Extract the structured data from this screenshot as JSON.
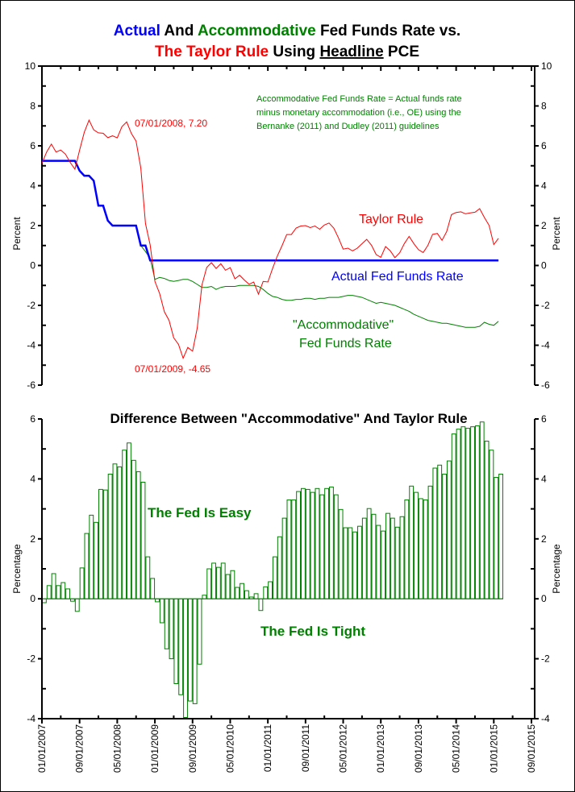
{
  "title": {
    "line1": [
      {
        "text": "Actual",
        "color": "#0000ff"
      },
      {
        "text": " And ",
        "color": "#000000"
      },
      {
        "text": "Accommodative",
        "color": "#008000"
      },
      {
        "text": " Fed Funds Rate vs.",
        "color": "#000000"
      }
    ],
    "line2": [
      {
        "text": "The Taylor Rule",
        "color": "#ff0000"
      },
      {
        "text": " Using ",
        "color": "#000000"
      },
      {
        "text": "Headline",
        "color": "#000000"
      },
      {
        "text": " PCE",
        "color": "#000000"
      }
    ]
  },
  "colors": {
    "taylor": "#ff0000",
    "actual": "#0000ff",
    "accommodative": "#008000",
    "bars": "#008000"
  },
  "chart_data": [
    {
      "type": "line",
      "x_start": "01/01/2007",
      "frequency": "monthly",
      "ylabel": "Percent",
      "ylim": [
        -6,
        10
      ],
      "yticks": [
        "10",
        "8",
        "6",
        "4",
        "2",
        "0",
        "-2",
        "-4",
        "-6"
      ],
      "annotations": {
        "peak": "07/01/2008, 7.20",
        "trough": "07/01/2009, -4.65",
        "note": [
          "Accommodative Fed Funds Rate = Actual funds rate",
          "minus monetary accommodation (i.e., OE) using the",
          "Bernanke (2011) and Dudley (2011) guidelines"
        ],
        "taylor_label": "Taylor Rule",
        "actual_label": "Actual Fed Funds Rate",
        "accom_label_1": "\"Accommodative\"",
        "accom_label_2": "Fed Funds Rate"
      },
      "series": [
        {
          "name": "Taylor Rule",
          "values": [
            5.12,
            5.69,
            6.09,
            5.69,
            5.79,
            5.58,
            5.17,
            4.83,
            5.78,
            6.68,
            7.29,
            6.8,
            6.65,
            6.63,
            6.41,
            6.5,
            6.4,
            6.96,
            7.2,
            6.62,
            6.24,
            4.89,
            2.1,
            1.03,
            -0.8,
            -1.4,
            -2.32,
            -2.75,
            -3.63,
            -3.95,
            -4.65,
            -4.11,
            -4.3,
            -3.13,
            -0.98,
            -0.1,
            0.14,
            -0.15,
            0.09,
            -0.24,
            -0.11,
            -0.67,
            -0.49,
            -0.73,
            -0.94,
            -0.83,
            -1.44,
            -0.8,
            -0.83,
            -0.15,
            0.47,
            0.99,
            1.55,
            1.55,
            1.88,
            1.98,
            2.0,
            1.9,
            1.98,
            1.82,
            2.03,
            2.13,
            1.87,
            1.38,
            0.82,
            0.87,
            0.73,
            0.87,
            1.09,
            1.31,
            1.02,
            0.55,
            0.41,
            0.95,
            0.74,
            0.39,
            0.64,
            1.1,
            1.46,
            1.1,
            0.79,
            0.65,
            1.01,
            1.56,
            1.61,
            1.26,
            1.7,
            2.55,
            2.66,
            2.69,
            2.59,
            2.64,
            2.67,
            2.85,
            2.41,
            2.01,
            1.05,
            1.36
          ]
        },
        {
          "name": "Actual Fed Funds Rate",
          "values": [
            5.25,
            5.25,
            5.25,
            5.25,
            5.25,
            5.25,
            5.25,
            5.25,
            4.75,
            4.5,
            4.5,
            4.25,
            3.0,
            3.0,
            2.25,
            2.0,
            2.0,
            2.0,
            2.0,
            2.0,
            2.0,
            1.0,
            1.0,
            0.25,
            0.25,
            0.25,
            0.25,
            0.25,
            0.25,
            0.25,
            0.25,
            0.25,
            0.25,
            0.25,
            0.25,
            0.25,
            0.25,
            0.25,
            0.25,
            0.25,
            0.25,
            0.25,
            0.25,
            0.25,
            0.25,
            0.25,
            0.25,
            0.25,
            0.25,
            0.25,
            0.25,
            0.25,
            0.25,
            0.25,
            0.25,
            0.25,
            0.25,
            0.25,
            0.25,
            0.25,
            0.25,
            0.25,
            0.25,
            0.25,
            0.25,
            0.25,
            0.25,
            0.25,
            0.25,
            0.25,
            0.25,
            0.25,
            0.25,
            0.25,
            0.25,
            0.25,
            0.25,
            0.25,
            0.25,
            0.25,
            0.25,
            0.25,
            0.25,
            0.25,
            0.25,
            0.25,
            0.25,
            0.25,
            0.25,
            0.25,
            0.25,
            0.25,
            0.25,
            0.25,
            0.25,
            0.25,
            0.25,
            0.25
          ]
        },
        {
          "name": "Accommodative Fed Funds Rate",
          "values": [
            5.25,
            5.25,
            5.25,
            5.25,
            5.25,
            5.25,
            5.25,
            5.25,
            4.75,
            4.5,
            4.5,
            4.25,
            3.0,
            3.0,
            2.25,
            2.0,
            2.0,
            2.0,
            2.0,
            2.0,
            2.0,
            1.0,
            0.7,
            0.35,
            -0.7,
            -0.6,
            -0.65,
            -0.75,
            -0.8,
            -0.75,
            -0.7,
            -0.7,
            -0.8,
            -0.95,
            -1.1,
            -1.1,
            -1.05,
            -1.2,
            -1.1,
            -1.05,
            -1.05,
            -1.05,
            -1.0,
            -1.0,
            -1.0,
            -1.0,
            -1.05,
            -1.2,
            -1.4,
            -1.55,
            -1.6,
            -1.7,
            -1.75,
            -1.75,
            -1.7,
            -1.7,
            -1.65,
            -1.65,
            -1.7,
            -1.65,
            -1.65,
            -1.6,
            -1.6,
            -1.6,
            -1.55,
            -1.5,
            -1.5,
            -1.55,
            -1.6,
            -1.7,
            -1.8,
            -1.9,
            -1.85,
            -1.9,
            -1.95,
            -2.0,
            -2.1,
            -2.2,
            -2.3,
            -2.45,
            -2.55,
            -2.65,
            -2.75,
            -2.8,
            -2.85,
            -2.9,
            -2.9,
            -2.95,
            -3.0,
            -3.05,
            -3.1,
            -3.1,
            -3.1,
            -3.05,
            -2.85,
            -2.95,
            -3.0,
            -2.8
          ]
        }
      ]
    },
    {
      "type": "bar",
      "title": "Difference Between \"Accommodative\" And Taylor Rule",
      "x_start": "01/01/2007",
      "frequency": "monthly",
      "ylabel": "Percentage",
      "ylim": [
        -4,
        6
      ],
      "yticks": [
        "6",
        "4",
        "2",
        "0",
        "-2",
        "-4"
      ],
      "annotations": {
        "easy": "The Fed Is Easy",
        "tight": "The Fed Is Tight"
      },
      "values": [
        -0.13,
        0.44,
        0.84,
        0.44,
        0.54,
        0.33,
        -0.08,
        -0.42,
        1.03,
        2.18,
        2.79,
        2.55,
        3.65,
        3.63,
        4.16,
        4.5,
        4.4,
        4.96,
        5.2,
        4.62,
        4.24,
        3.89,
        1.4,
        0.68,
        -0.1,
        -0.8,
        -1.67,
        -2.0,
        -2.83,
        -3.2,
        -3.96,
        -3.41,
        -3.5,
        -2.18,
        0.12,
        1.0,
        1.19,
        1.05,
        1.19,
        0.81,
        0.94,
        0.38,
        0.51,
        0.27,
        0.06,
        0.17,
        -0.39,
        0.4,
        0.57,
        1.4,
        2.07,
        2.69,
        3.3,
        3.3,
        3.58,
        3.68,
        3.65,
        3.55,
        3.68,
        3.47,
        3.68,
        3.73,
        3.47,
        2.98,
        2.37,
        2.37,
        2.23,
        2.42,
        2.69,
        3.01,
        2.82,
        2.45,
        2.26,
        2.85,
        2.69,
        2.39,
        2.74,
        3.3,
        3.76,
        3.55,
        3.34,
        3.3,
        3.76,
        4.36,
        4.46,
        4.16,
        4.6,
        5.5,
        5.66,
        5.74,
        5.69,
        5.74,
        5.77,
        5.9,
        5.26,
        4.96,
        4.05,
        4.16
      ],
      "xticks": [
        "01/01/2007",
        "09/01/2007",
        "05/01/2008",
        "01/01/2009",
        "09/01/2009",
        "05/01/2010",
        "01/01/2011",
        "09/01/2011",
        "05/01/2012",
        "01/01/2013",
        "09/01/2013",
        "05/01/2014",
        "01/01/2015",
        "09/01/2015"
      ]
    }
  ]
}
